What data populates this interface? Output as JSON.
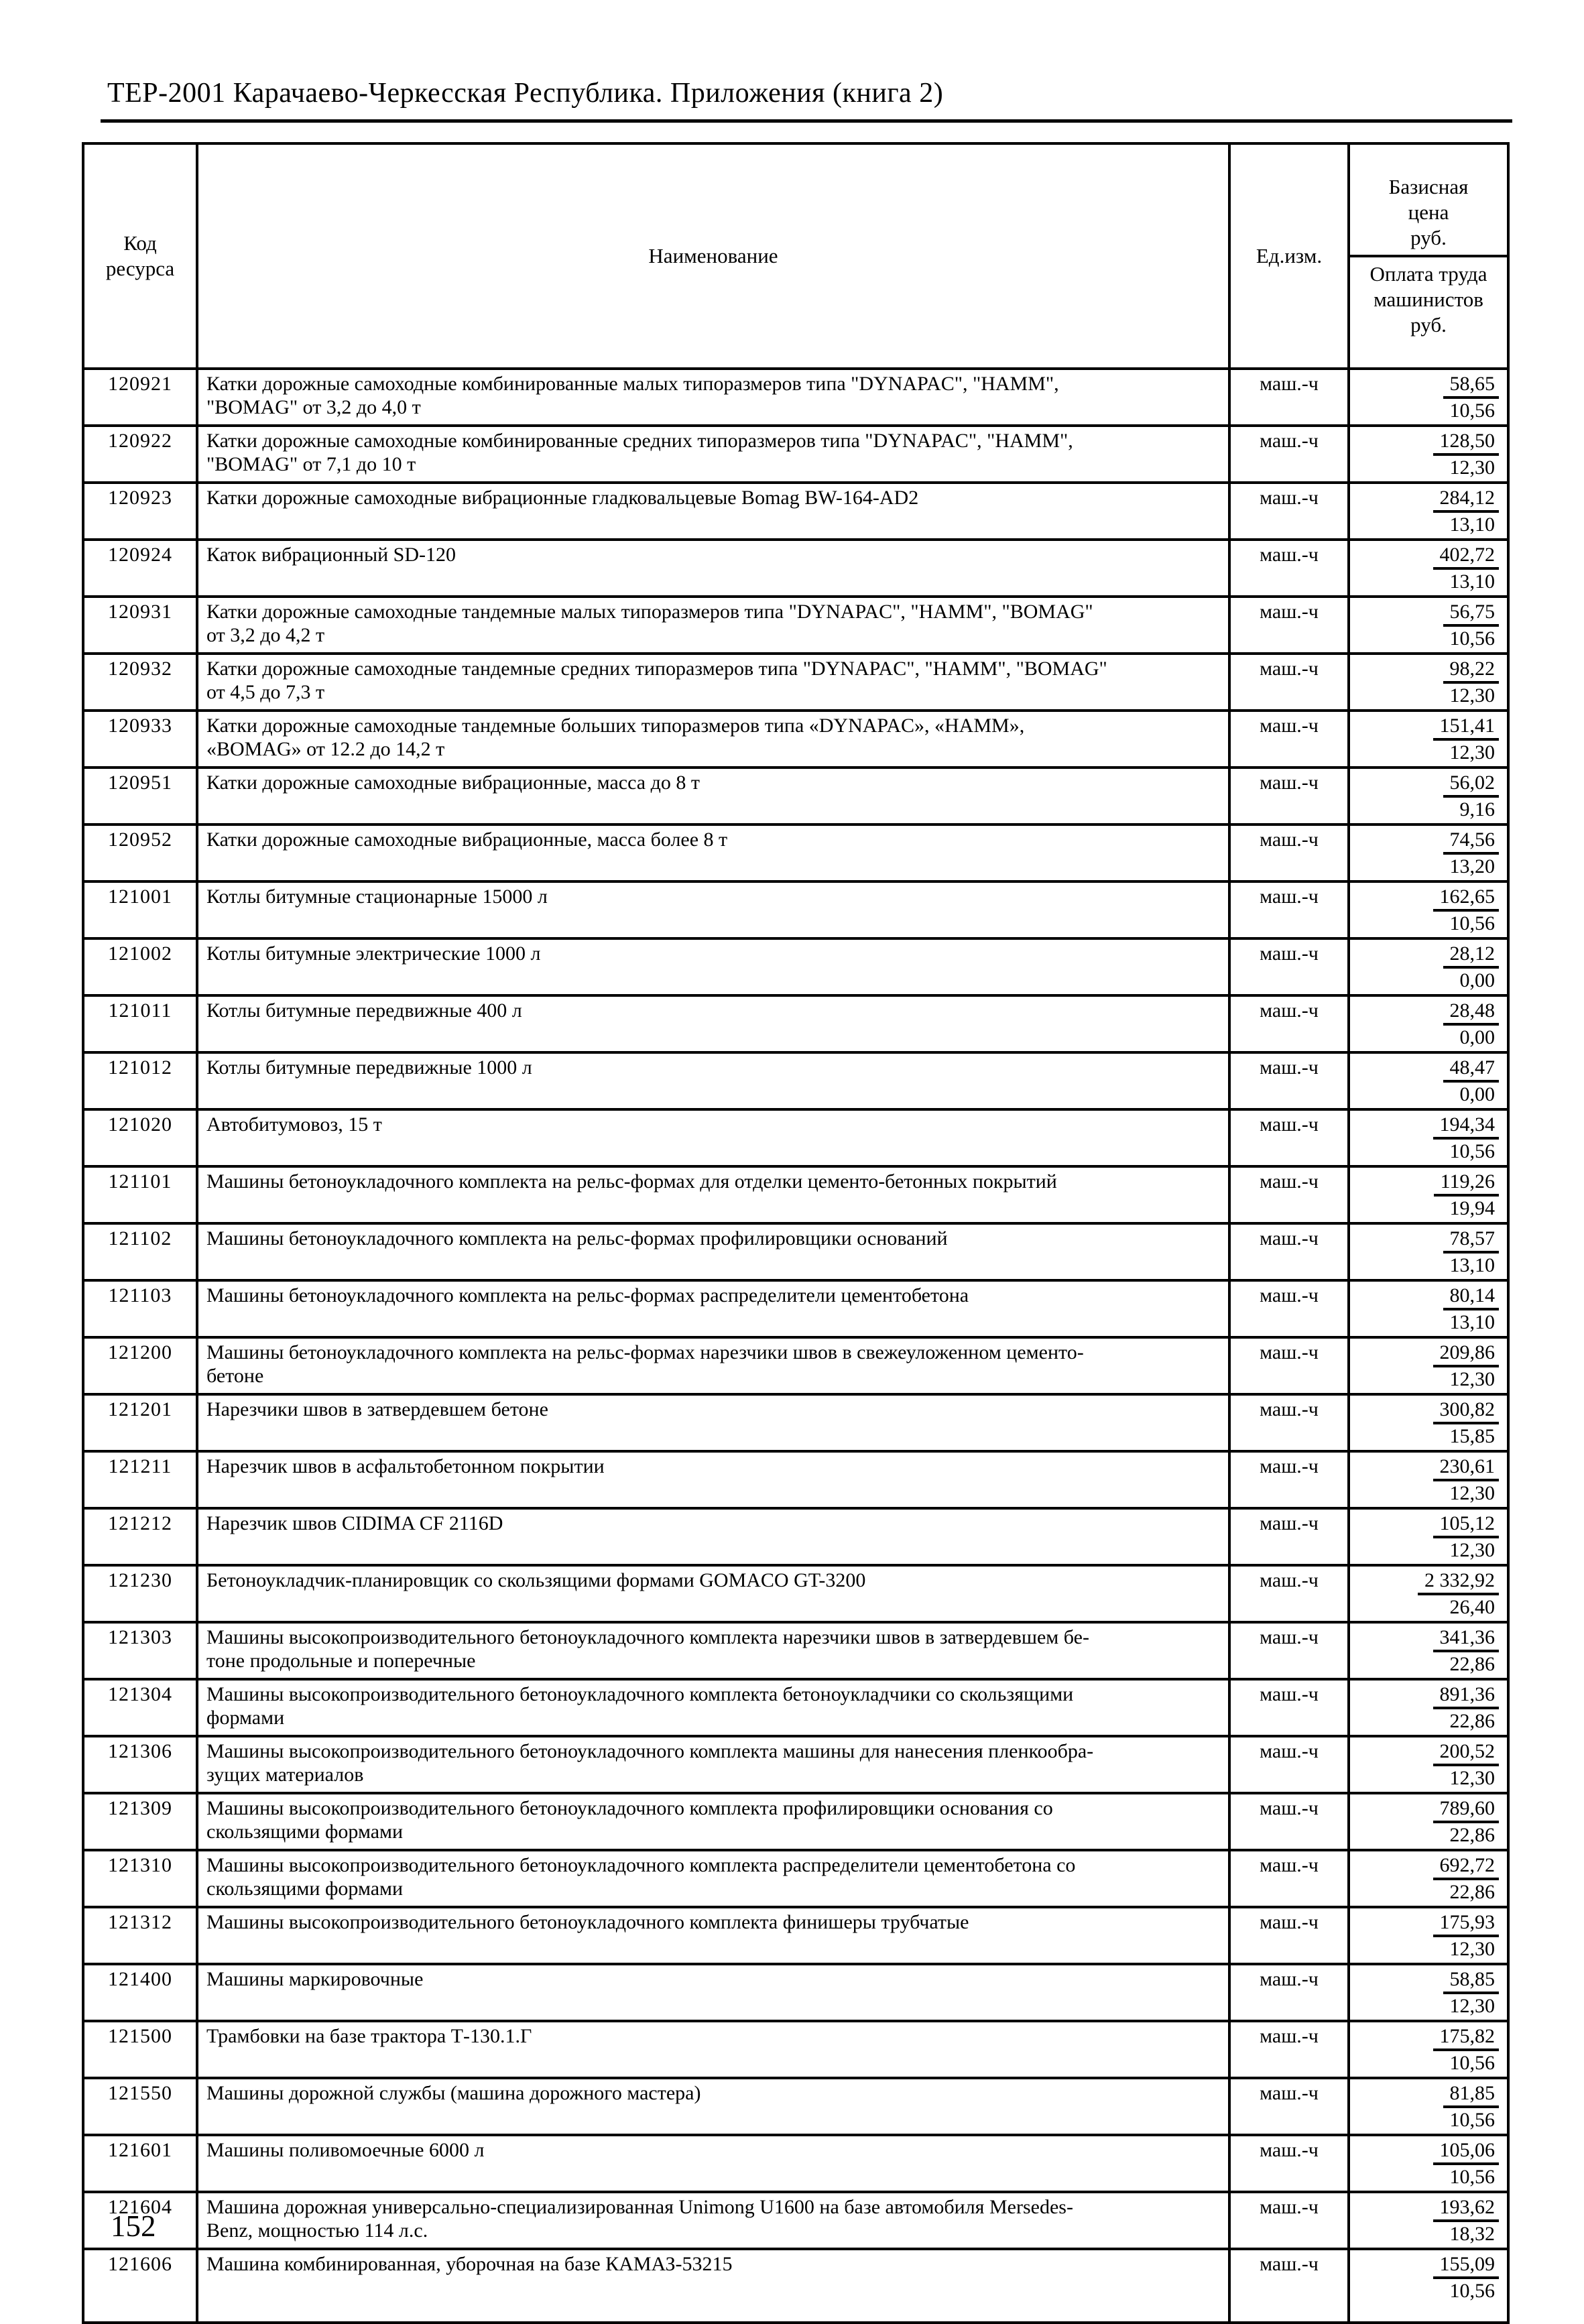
{
  "page": {
    "header": "ТЕР-2001 Карачаево-Черкесская Республика. Приложения (книга 2)",
    "page_number": "152"
  },
  "table": {
    "columns": {
      "code": "Код\nресурса",
      "name": "Наименование",
      "unit": "Ед.изм.",
      "price_top": "Базисная\nцена\nруб.",
      "price_bottom": "Оплата труда\nмашинистов\nруб."
    },
    "rows": [
      {
        "code": "120921",
        "name": "Катки дорожные самоходные комбинированные малых типоразмеров типа \"DYNAPAC\", \"HAMM\",\n\"BOMAG\" от 3,2 до 4,0 т",
        "unit": "маш.-ч",
        "base": "58,65",
        "labor": "10,56"
      },
      {
        "code": "120922",
        "name": "Катки дорожные самоходные комбинированные средних типоразмеров типа \"DYNAPAC\", \"HAMM\",\n\"BOMAG\" от 7,1 до 10 т",
        "unit": "маш.-ч",
        "base": "128,50",
        "labor": "12,30"
      },
      {
        "code": "120923",
        "name": "Катки дорожные самоходные вибрационные гладковальцевые Bomag BW-164-AD2",
        "unit": "маш.-ч",
        "base": "284,12",
        "labor": "13,10"
      },
      {
        "code": "120924",
        "name": "Каток вибрационный SD-120",
        "unit": "маш.-ч",
        "base": "402,72",
        "labor": "13,10"
      },
      {
        "code": "120931",
        "name": "Катки дорожные самоходные тандемные малых типоразмеров типа \"DYNAPAC\", \"HAMM\", \"BOMAG\"\nот 3,2 до 4,2 т",
        "unit": "маш.-ч",
        "base": "56,75",
        "labor": "10,56"
      },
      {
        "code": "120932",
        "name": "Катки дорожные самоходные тандемные средних типоразмеров типа \"DYNAPAC\", \"HAMM\", \"BOMAG\"\nот 4,5 до 7,3 т",
        "unit": "маш.-ч",
        "base": "98,22",
        "labor": "12,30"
      },
      {
        "code": "120933",
        "name": "Катки дорожные самоходные тандемные больших типоразмеров типа «DYNAPAC», «HAMM»,\n«BOMAG» от 12.2 до 14,2 т",
        "unit": "маш.-ч",
        "base": "151,41",
        "labor": "12,30"
      },
      {
        "code": "120951",
        "name": "Катки дорожные самоходные вибрационные, масса до 8 т",
        "unit": "маш.-ч",
        "base": "56,02",
        "labor": "9,16"
      },
      {
        "code": "120952",
        "name": "Катки дорожные самоходные вибрационные, масса более 8 т",
        "unit": "маш.-ч",
        "base": "74,56",
        "labor": "13,20"
      },
      {
        "code": "121001",
        "name": "Котлы битумные стационарные 15000 л",
        "unit": "маш.-ч",
        "base": "162,65",
        "labor": "10,56"
      },
      {
        "code": "121002",
        "name": "Котлы битумные электрические 1000 л",
        "unit": "маш.-ч",
        "base": "28,12",
        "labor": "0,00"
      },
      {
        "code": "121011",
        "name": "Котлы битумные передвижные 400 л",
        "unit": "маш.-ч",
        "base": "28,48",
        "labor": "0,00"
      },
      {
        "code": "121012",
        "name": "Котлы битумные передвижные 1000 л",
        "unit": "маш.-ч",
        "base": "48,47",
        "labor": "0,00"
      },
      {
        "code": "121020",
        "name": "Автобитумовоз, 15 т",
        "unit": "маш.-ч",
        "base": "194,34",
        "labor": "10,56"
      },
      {
        "code": "121101",
        "name": "Машины бетоноукладочного комплекта на рельс-формах для отделки цементо-бетонных покрытий",
        "unit": "маш.-ч",
        "base": "119,26",
        "labor": "19,94"
      },
      {
        "code": "121102",
        "name": "Машины бетоноукладочного комплекта на рельс-формах профилировщики оснований",
        "unit": "маш.-ч",
        "base": "78,57",
        "labor": "13,10"
      },
      {
        "code": "121103",
        "name": "Машины бетоноукладочного комплекта на рельс-формах распределители цементобетона",
        "unit": "маш.-ч",
        "base": "80,14",
        "labor": "13,10"
      },
      {
        "code": "121200",
        "name": "Машины бетоноукладочного комплекта на рельс-формах нарезчики швов в свежеуложенном цементо-\nбетоне",
        "unit": "маш.-ч",
        "base": "209,86",
        "labor": "12,30"
      },
      {
        "code": "121201",
        "name": "Нарезчики швов в затвердевшем бетоне",
        "unit": "маш.-ч",
        "base": "300,82",
        "labor": "15,85"
      },
      {
        "code": "121211",
        "name": "Нарезчик швов в асфальтобетонном покрытии",
        "unit": "маш.-ч",
        "base": "230,61",
        "labor": "12,30"
      },
      {
        "code": "121212",
        "name": "Нарезчик швов CIDIMA CF 2116D",
        "unit": "маш.-ч",
        "base": "105,12",
        "labor": "12,30"
      },
      {
        "code": "121230",
        "name": "Бетоноукладчик-планировщик со скользящими формами GOMACO GT-3200",
        "unit": "маш.-ч",
        "base": "2 332,92",
        "labor": "26,40"
      },
      {
        "code": "121303",
        "name": "Машины высокопроизводительного бетоноукладочного комплекта нарезчики швов в затвердевшем бе-\nтоне продольные и поперечные",
        "unit": "маш.-ч",
        "base": "341,36",
        "labor": "22,86"
      },
      {
        "code": "121304",
        "name": "Машины высокопроизводительного бетоноукладочного комплекта бетоноукладчики со скользящими\nформами",
        "unit": "маш.-ч",
        "base": "891,36",
        "labor": "22,86"
      },
      {
        "code": "121306",
        "name": "Машины высокопроизводительного бетоноукладочного комплекта машины для нанесения пленкообра-\nзущих материалов",
        "unit": "маш.-ч",
        "base": "200,52",
        "labor": "12,30"
      },
      {
        "code": "121309",
        "name": "Машины высокопроизводительного бетоноукладочного комплекта профилировщики основания со\nскользящими формами",
        "unit": "маш.-ч",
        "base": "789,60",
        "labor": "22,86"
      },
      {
        "code": "121310",
        "name": "Машины высокопроизводительного бетоноукладочного комплекта распределители цементобетона со\nскользящими формами",
        "unit": "маш.-ч",
        "base": "692,72",
        "labor": "22,86"
      },
      {
        "code": "121312",
        "name": "Машины высокопроизводительного бетоноукладочного комплекта финишеры трубчатые",
        "unit": "маш.-ч",
        "base": "175,93",
        "labor": "12,30"
      },
      {
        "code": "121400",
        "name": "Машины маркировочные",
        "unit": "маш.-ч",
        "base": "58,85",
        "labor": "12,30"
      },
      {
        "code": "121500",
        "name": "Трамбовки на базе трактора Т-130.1.Г",
        "unit": "маш.-ч",
        "base": "175,82",
        "labor": "10,56"
      },
      {
        "code": "121550",
        "name": "Машины дорожной службы (машина дорожного мастера)",
        "unit": "маш.-ч",
        "base": "81,85",
        "labor": "10,56"
      },
      {
        "code": "121601",
        "name": "Машины поливомоечные 6000 л",
        "unit": "маш.-ч",
        "base": "105,06",
        "labor": "10,56"
      },
      {
        "code": "121604",
        "name": "Машина дорожная универсально-специализированная Unimong U1600 на базе автомобиля Mersedes-\nBenz, мощностью 114 л.с.",
        "unit": "маш.-ч",
        "base": "193,62",
        "labor": "18,32"
      },
      {
        "code": "121606",
        "name": "Машина комбинированная, уборочная на базе КАМАЗ-53215",
        "unit": "маш.-ч",
        "base": "155,09",
        "labor": "10,56"
      }
    ]
  }
}
